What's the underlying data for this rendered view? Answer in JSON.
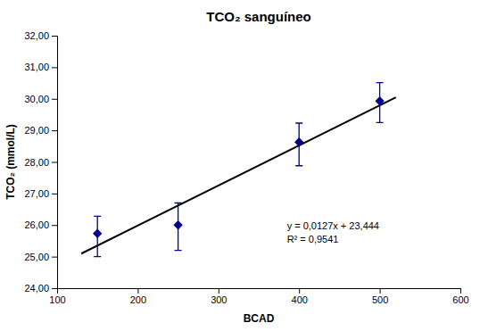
{
  "chart_data": {
    "type": "scatter",
    "title": "TCO₂ sanguíneo",
    "x_label": "BCAD",
    "y_label": "TCO₂ (mmol/L)",
    "series": [
      {
        "type": "scatter",
        "color": "#00008B",
        "marker": "diamond",
        "x": [
          150,
          250,
          400,
          500
        ],
        "values": [
          25.73,
          26.0,
          28.63,
          29.93
        ],
        "error_lower": [
          0.73,
          0.8,
          0.75,
          0.68
        ],
        "error_upper": [
          0.55,
          0.7,
          0.6,
          0.58
        ]
      },
      {
        "type": "line",
        "color": "#000000",
        "line_style": "solid",
        "x": [
          130,
          520
        ],
        "values": [
          25.095,
          30.048
        ]
      }
    ],
    "annotations": [
      "y = 0,0127x + 23,444",
      "R² = 0,9541"
    ],
    "xlim": [
      100,
      600
    ],
    "ylim": [
      24.0,
      32.0
    ],
    "xticks": [
      100,
      200,
      300,
      400,
      500,
      600
    ],
    "yticks": [
      {
        "value": 24.0,
        "label": "24,00"
      },
      {
        "value": 25.0,
        "label": "25,00"
      },
      {
        "value": 26.0,
        "label": "26,00"
      },
      {
        "value": 27.0,
        "label": "27,00"
      },
      {
        "value": 28.0,
        "label": "28,00"
      },
      {
        "value": 29.0,
        "label": "29,00"
      },
      {
        "value": 30.0,
        "label": "30,00"
      },
      {
        "value": 31.0,
        "label": "31,00"
      },
      {
        "value": 32.0,
        "label": "32,00"
      }
    ],
    "grid": false
  }
}
